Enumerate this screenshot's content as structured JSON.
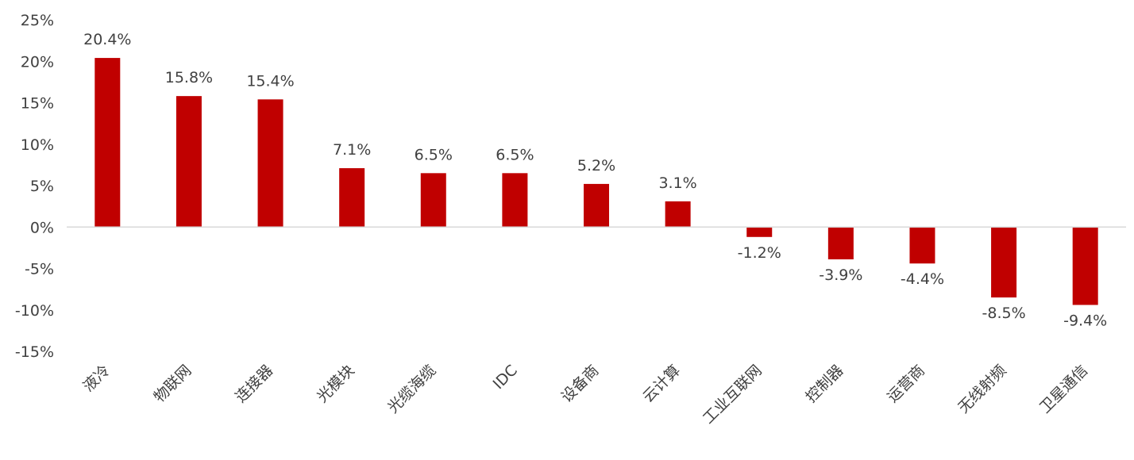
{
  "chart_data": {
    "type": "bar",
    "title": "",
    "xlabel": "",
    "ylabel": "",
    "categories": [
      "液冷",
      "物联网",
      "连接器",
      "光模块",
      "光缆海缆",
      "IDC",
      "设备商",
      "云计算",
      "工业互联网",
      "控制器",
      "运营商",
      "无线射频",
      "卫星通信"
    ],
    "values": [
      20.4,
      15.8,
      15.4,
      7.1,
      6.5,
      6.5,
      5.2,
      3.1,
      -1.2,
      -3.9,
      -4.4,
      -8.5,
      -9.4
    ],
    "data_labels": [
      "20.4%",
      "15.8%",
      "15.4%",
      "7.1%",
      "6.5%",
      "6.5%",
      "5.2%",
      "3.1%",
      "-1.2%",
      "-3.9%",
      "-4.4%",
      "-8.5%",
      "-9.4%"
    ],
    "ylim": [
      -15,
      25
    ],
    "yticks": [
      25,
      20,
      15,
      10,
      5,
      0,
      -5,
      -10,
      -15
    ],
    "ytick_labels": [
      "25%",
      "20%",
      "15%",
      "10%",
      "5%",
      "0%",
      "-5%",
      "-10%",
      "-15%"
    ],
    "bar_color": "#C00000",
    "axis_color": "#D9D9D9",
    "grid": false,
    "legend": "none"
  }
}
